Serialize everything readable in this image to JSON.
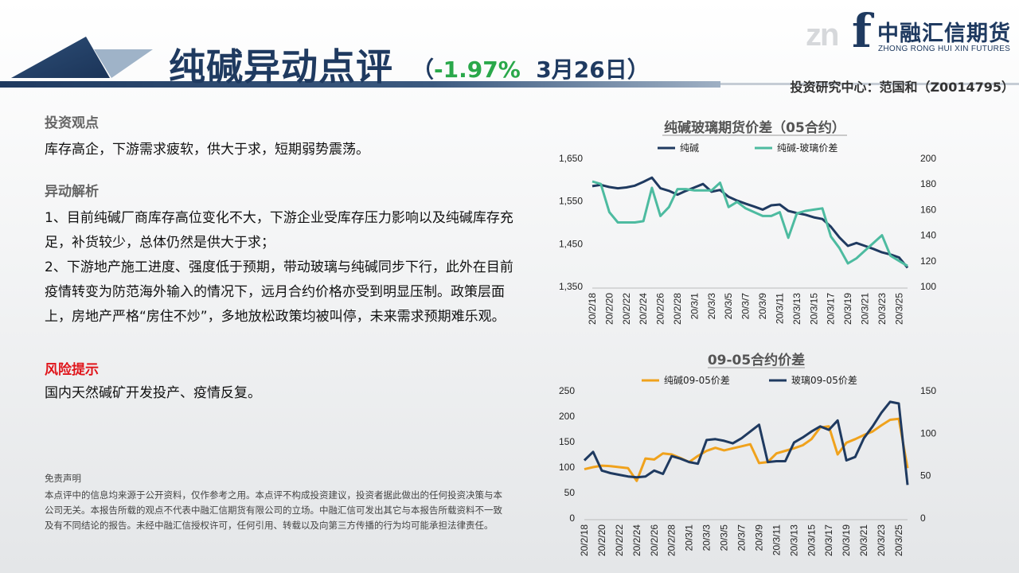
{
  "header": {
    "title": "纯碱异动点评",
    "subtitle_open": "（",
    "change_pct": "-1.97%",
    "date": "3月26日",
    "subtitle_close": "）",
    "author": "投资研究中心：范国和（Z0014795）"
  },
  "logo": {
    "mark": "f",
    "watermark": "zn",
    "name_cn": "中融汇信期货",
    "name_en": "ZHONG RONG HUI XIN FUTURES"
  },
  "view": {
    "title": "投资观点",
    "text": "库存高企，下游需求疲软，供大于求，短期弱势震荡。"
  },
  "analysis": {
    "title": "异动解析",
    "p1": "1、目前纯碱厂商库存高位变化不大，下游企业受库存压力影响以及纯碱库存充足，补货较少，总体仍然是供大于求；",
    "p2": "2、下游地产施工进度、强度低于预期，带动玻璃与纯碱同步下行，此外在目前疫情转变为防范海外输入的情况下，远月合约价格亦受到明显压制。政策层面上，房地产严格“房住不炒”，多地放松政策均被叫停，未来需求预期难乐观。"
  },
  "risk": {
    "title": "风险提示",
    "text": "国内天然碱矿开发投产、疫情反复。"
  },
  "disclaimer": {
    "title": "免责声明",
    "text": "本点评中的信息均来源于公开资料，仅作参考之用。本点评不构成投资建议，投资者据此做出的任何投资决策与本公司无关。本报告所载的观点不代表中融汇信期货有限公司的立场。中融汇信可发出其它与本报告所载资料不一致及有不同结论的报告。未经中融汇信授权许可，任何引用、转载以及向第三方传播的行为均可能承担法律责任。"
  },
  "colors": {
    "navy": "#1f3a60",
    "teal": "#4dbba0",
    "orange": "#f0a21c",
    "up_green": "#2aa84a",
    "risk_red": "#e0151b"
  },
  "chart_data": [
    {
      "type": "line",
      "title": "纯碱玻璃期货价差（05合约）",
      "x": [
        "20/2/18",
        "20/2/19",
        "20/2/20",
        "20/2/21",
        "20/2/22",
        "20/2/23",
        "20/2/24",
        "20/2/25",
        "20/2/26",
        "20/2/27",
        "20/2/28",
        "20/2/29",
        "20/3/1",
        "20/3/2",
        "20/3/3",
        "20/3/4",
        "20/3/5",
        "20/3/6",
        "20/3/7",
        "20/3/8",
        "20/3/9",
        "20/3/10",
        "20/3/11",
        "20/3/12",
        "20/3/13",
        "20/3/14",
        "20/3/15",
        "20/3/16",
        "20/3/17",
        "20/3/18",
        "20/3/19",
        "20/3/20",
        "20/3/21",
        "20/3/22",
        "20/3/23",
        "20/3/24",
        "20/3/25",
        "20/3/26"
      ],
      "xticks": [
        "20/2/18",
        "20/2/20",
        "20/2/22",
        "20/2/24",
        "20/2/26",
        "20/2/28",
        "20/3/1",
        "20/3/3",
        "20/3/5",
        "20/3/7",
        "20/3/9",
        "20/3/11",
        "20/3/13",
        "20/3/15",
        "20/3/17",
        "20/3/19",
        "20/3/21",
        "20/3/23",
        "20/3/25"
      ],
      "series": [
        {
          "name": "纯碱",
          "axis": "left",
          "color": "#1f3a60",
          "values": [
            1585,
            1588,
            1583,
            1580,
            1582,
            1586,
            1595,
            1605,
            1580,
            1574,
            1565,
            1574,
            1582,
            1590,
            1572,
            1576,
            1560,
            1551,
            1544,
            1537,
            1530,
            1540,
            1542,
            1527,
            1522,
            1518,
            1512,
            1508,
            1490,
            1465,
            1445,
            1452,
            1445,
            1438,
            1430,
            1425,
            1418,
            1394
          ]
        },
        {
          "name": "纯碱-玻璃价差",
          "axis": "right",
          "color": "#4dbba0",
          "values": [
            182,
            180,
            158,
            150,
            150,
            150,
            151,
            177,
            155,
            162,
            176,
            176,
            175,
            175,
            175,
            181,
            162,
            166,
            161,
            158,
            155,
            155,
            158,
            138,
            157,
            159,
            160,
            161,
            139,
            130,
            118,
            122,
            128,
            134,
            140,
            124,
            120,
            116
          ]
        }
      ],
      "ylim_left": [
        1350,
        1650
      ],
      "yticks_left": [
        "1,350",
        "1,450",
        "1,550",
        "1,650"
      ],
      "ylim_right": [
        100,
        200
      ],
      "yticks_right": [
        "100",
        "120",
        "140",
        "160",
        "180",
        "200"
      ],
      "legend": "top"
    },
    {
      "type": "line",
      "title": "09-05合约价差",
      "x": [
        "20/2/18",
        "20/2/19",
        "20/2/20",
        "20/2/21",
        "20/2/22",
        "20/2/23",
        "20/2/24",
        "20/2/25",
        "20/2/26",
        "20/2/27",
        "20/2/28",
        "20/2/29",
        "20/3/1",
        "20/3/2",
        "20/3/3",
        "20/3/4",
        "20/3/5",
        "20/3/6",
        "20/3/7",
        "20/3/8",
        "20/3/9",
        "20/3/10",
        "20/3/11",
        "20/3/12",
        "20/3/13",
        "20/3/14",
        "20/3/15",
        "20/3/16",
        "20/3/17",
        "20/3/18",
        "20/3/19",
        "20/3/20",
        "20/3/21",
        "20/3/22",
        "20/3/23",
        "20/3/24",
        "20/3/25",
        "20/3/26"
      ],
      "xticks": [
        "20/2/18",
        "20/2/20",
        "20/2/22",
        "20/2/24",
        "20/2/26",
        "20/2/28",
        "20/3/1",
        "20/3/3",
        "20/3/5",
        "20/3/7",
        "20/3/9",
        "20/3/11",
        "20/3/13",
        "20/3/15",
        "20/3/17",
        "20/3/19",
        "20/3/21",
        "20/3/23",
        "20/3/25"
      ],
      "series": [
        {
          "name": "纯碱09-05价差",
          "axis": "left",
          "color": "#f0a21c",
          "values": [
            96,
            100,
            103,
            102,
            100,
            98,
            73,
            117,
            115,
            127,
            125,
            118,
            110,
            122,
            132,
            138,
            133,
            137,
            141,
            145,
            108,
            110,
            127,
            132,
            137,
            143,
            155,
            178,
            180,
            125,
            148,
            155,
            163,
            170,
            182,
            193,
            195,
            98
          ]
        },
        {
          "name": "玻璃09-05价差",
          "axis": "right",
          "color": "#1f3a60",
          "values": [
            68,
            78,
            56,
            53,
            51,
            49,
            48,
            49,
            56,
            52,
            73,
            70,
            66,
            64,
            92,
            93,
            91,
            88,
            94,
            102,
            110,
            66,
            67,
            67,
            89,
            95,
            102,
            108,
            104,
            115,
            68,
            72,
            94,
            108,
            124,
            137,
            135,
            39
          ]
        }
      ],
      "ylim_left": [
        0,
        250
      ],
      "yticks_left": [
        "0",
        "50",
        "100",
        "150",
        "200",
        "250"
      ],
      "ylim_right": [
        0,
        150
      ],
      "yticks_right": [
        "0",
        "50",
        "100",
        "150"
      ],
      "legend": "top"
    }
  ]
}
